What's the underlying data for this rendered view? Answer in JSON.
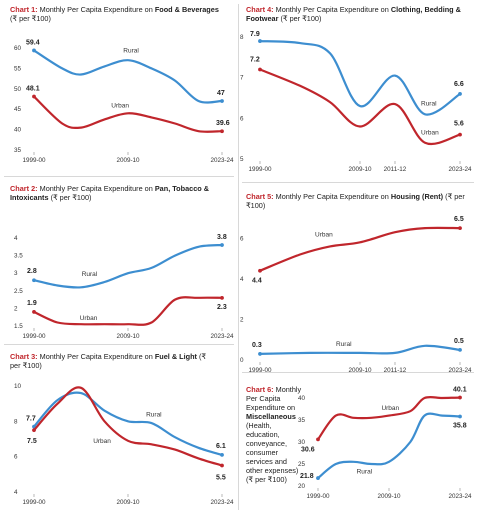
{
  "colors": {
    "rural": "#3d8ed0",
    "urban": "#c0262c",
    "title_prefix": "#c0262c"
  },
  "charts": [
    {
      "prefix": "Chart 1:",
      "text": "Monthly Per Capita Expenditure on",
      "bold_text": "Food & Beverages",
      "suffix": "(₹ per ₹100)"
    },
    {
      "prefix": "Chart 2:",
      "text": "Monthly Per Capita Expenditure on",
      "bold_text": "Pan, Tobacco & Intoxicants",
      "suffix": "(₹ per ₹100)"
    },
    {
      "prefix": "Chart 3:",
      "text": "Monthly Per Capita Expenditure on",
      "bold_text": "Fuel & Light",
      "suffix": "(₹ per ₹100)"
    },
    {
      "prefix": "Chart 4:",
      "text": "Monthly Per Capita Expenditure on",
      "bold_text": "Clothing, Bedding & Footwear",
      "suffix": "(₹ per ₹100)"
    },
    {
      "prefix": "Chart 5:",
      "text": "Monthly Per Capita Expenditure on",
      "bold_text": "Housing (Rent)",
      "suffix": "(₹ per ₹100)"
    },
    {
      "prefix": "Chart 6:",
      "text": "Monthly Per Capita Expenditure on",
      "bold_text": "Miscellaneous",
      "suffix": "(Health, education, conveyance, consumer services and other expenses) (₹ per ₹100)"
    }
  ],
  "chart_data": [
    {
      "type": "line",
      "x_ticks": [
        "1999-00",
        "2009-10",
        "2023-24"
      ],
      "x": [
        0,
        2,
        4
      ],
      "ylim": [
        35,
        60
      ],
      "y_ticks": [
        35,
        40,
        45,
        50,
        55,
        60
      ],
      "series": [
        {
          "name": "Rural",
          "x": [
            0,
            0.6,
            1,
            1.5,
            2,
            2.5,
            3,
            3.5,
            4
          ],
          "values": [
            59.4,
            55,
            53.5,
            55.5,
            57,
            55,
            52,
            47,
            47
          ],
          "labels": {
            "start": "59.4",
            "end": "47"
          }
        },
        {
          "name": "Urban",
          "x": [
            0,
            0.6,
            1,
            1.5,
            2,
            2.5,
            3,
            3.5,
            4
          ],
          "values": [
            48.1,
            41.5,
            40.5,
            42.5,
            44,
            43,
            41.5,
            39.6,
            39.6
          ],
          "labels": {
            "start": "48.1",
            "end": "39.6"
          }
        }
      ]
    },
    {
      "type": "line",
      "x_ticks": [
        "1999-00",
        "2009-10",
        "2023-24"
      ],
      "x": [
        0,
        2,
        4
      ],
      "ylim": [
        1.5,
        4
      ],
      "y_ticks": [
        1.5,
        2,
        2.5,
        3,
        3.5,
        4
      ],
      "series": [
        {
          "name": "Rural",
          "x": [
            0,
            0.5,
            1,
            1.5,
            2,
            2.5,
            3,
            3.5,
            4
          ],
          "values": [
            2.8,
            2.65,
            2.6,
            2.75,
            3.0,
            3.15,
            3.5,
            3.75,
            3.8
          ],
          "labels": {
            "start": "2.8",
            "end": "3.8"
          }
        },
        {
          "name": "Urban",
          "x": [
            0,
            0.5,
            1,
            1.5,
            2,
            2.5,
            3,
            3.5,
            4
          ],
          "values": [
            1.9,
            1.6,
            1.55,
            1.55,
            1.55,
            1.6,
            2.25,
            2.3,
            2.3
          ],
          "labels": {
            "start": "1.9",
            "end": "2.3"
          }
        }
      ]
    },
    {
      "type": "line",
      "x_ticks": [
        "1999-00",
        "2009-10",
        "2023-24"
      ],
      "x": [
        0,
        2,
        4
      ],
      "ylim": [
        4,
        10
      ],
      "y_ticks": [
        4,
        6,
        8,
        10
      ],
      "series": [
        {
          "name": "Rural",
          "x": [
            0,
            0.5,
            1,
            1.5,
            2,
            2.5,
            3,
            3.5,
            4
          ],
          "values": [
            7.7,
            9.2,
            9.6,
            8.6,
            8.0,
            7.9,
            7.1,
            6.5,
            6.1
          ],
          "labels": {
            "start": "7.7",
            "end": "6.1"
          }
        },
        {
          "name": "Urban",
          "x": [
            0,
            0.5,
            1,
            1.5,
            2,
            2.5,
            3,
            3.5,
            4
          ],
          "values": [
            7.5,
            9.0,
            9.9,
            8.0,
            6.9,
            6.7,
            6.4,
            5.9,
            5.5
          ],
          "labels": {
            "start": "7.5",
            "end": "5.5"
          }
        }
      ]
    },
    {
      "type": "line",
      "x_ticks": [
        "1999-00",
        "2009-10",
        "2011-12",
        "2023-24"
      ],
      "x": [
        0,
        2,
        2.7,
        4
      ],
      "ylim": [
        5,
        8
      ],
      "y_ticks": [
        5,
        6,
        7,
        8
      ],
      "series": [
        {
          "name": "Rural",
          "x": [
            0,
            0.8,
            1.4,
            2,
            2.7,
            3.3,
            4
          ],
          "values": [
            7.9,
            7.85,
            7.6,
            6.3,
            7.05,
            6.1,
            6.6
          ],
          "labels": {
            "start": "7.9",
            "end": "6.6"
          }
        },
        {
          "name": "Urban",
          "x": [
            0,
            0.8,
            1.4,
            2,
            2.7,
            3.3,
            4
          ],
          "values": [
            7.2,
            6.8,
            6.4,
            5.8,
            6.35,
            5.4,
            5.6
          ],
          "labels": {
            "start": "7.2",
            "end": "5.6"
          }
        }
      ]
    },
    {
      "type": "line",
      "x_ticks": [
        "1999-00",
        "2009-10",
        "2011-12",
        "2023-24"
      ],
      "x": [
        0,
        2,
        2.7,
        4
      ],
      "ylim": [
        0,
        7
      ],
      "y_ticks": [
        0,
        2,
        4,
        6
      ],
      "series": [
        {
          "name": "Rural",
          "x": [
            0,
            1,
            2,
            2.7,
            3.3,
            4
          ],
          "values": [
            0.3,
            0.35,
            0.35,
            0.35,
            0.7,
            0.5
          ],
          "labels": {
            "start": "0.3",
            "end": "0.5"
          }
        },
        {
          "name": "Urban",
          "x": [
            0,
            0.8,
            1.4,
            2,
            2.7,
            3.3,
            4
          ],
          "values": [
            4.4,
            5.2,
            5.6,
            5.8,
            6.3,
            6.5,
            6.5
          ],
          "labels": {
            "start": "4.4",
            "end": "6.5"
          }
        }
      ]
    },
    {
      "type": "line",
      "x_ticks": [
        "1999-00",
        "2009-10",
        "2023-24"
      ],
      "x": [
        0,
        2,
        4
      ],
      "ylim": [
        20,
        40
      ],
      "y_ticks": [
        20,
        25,
        30,
        35,
        40
      ],
      "series": [
        {
          "name": "Rural",
          "x": [
            0,
            0.5,
            1,
            1.5,
            2,
            2.6,
            3,
            3.5,
            4
          ],
          "values": [
            21.8,
            25,
            25.5,
            25,
            25.5,
            30,
            36,
            36,
            35.8
          ],
          "labels": {
            "start": "21.8",
            "end": "35.8"
          }
        },
        {
          "name": "Urban",
          "x": [
            0,
            0.5,
            1,
            1.5,
            2,
            2.6,
            3,
            3.5,
            4
          ],
          "values": [
            30.6,
            36,
            35.5,
            35.5,
            36,
            37,
            40,
            40,
            40.1
          ],
          "labels": {
            "start": "30.6",
            "end": "40.1"
          }
        }
      ]
    }
  ]
}
